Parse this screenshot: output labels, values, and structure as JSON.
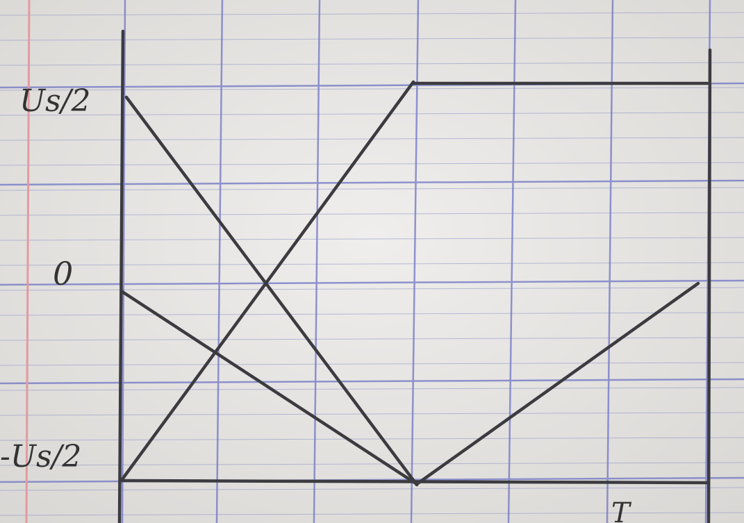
{
  "labels": {
    "top": "Us/2",
    "middle": "0",
    "bottom": "-Us/2",
    "period": "T"
  }
}
